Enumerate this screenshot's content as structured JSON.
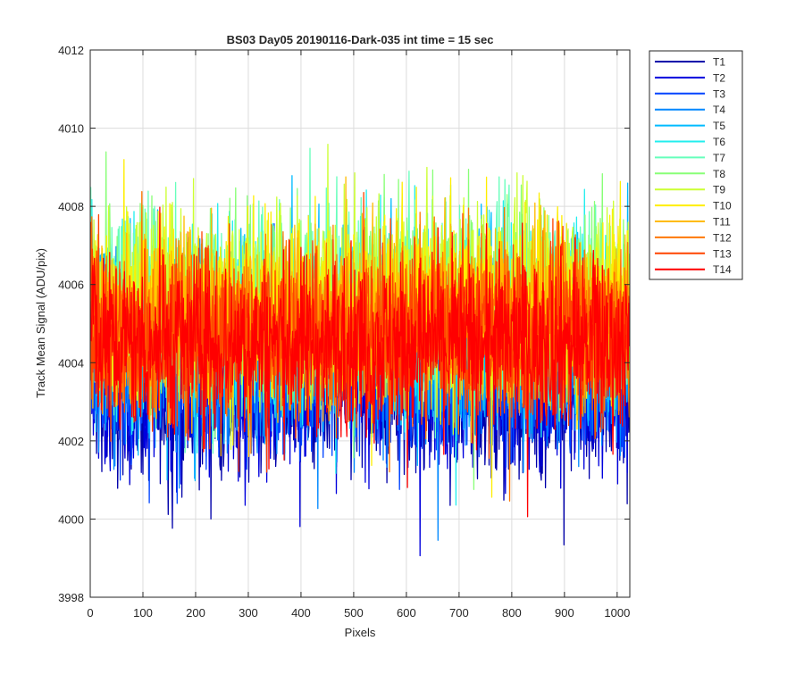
{
  "chart_data": {
    "type": "line",
    "title": "BS03 Day05 20190116-Dark-035 int time = 15 sec",
    "xlabel": "Pixels",
    "ylabel": "Track Mean Signal (ADU/pix)",
    "xlim": [
      0,
      1024
    ],
    "ylim": [
      3998,
      4012
    ],
    "xticks": [
      0,
      100,
      200,
      300,
      400,
      500,
      600,
      700,
      800,
      900,
      1000
    ],
    "yticks": [
      3998,
      4000,
      4002,
      4004,
      4006,
      4008,
      4010,
      4012
    ],
    "grid": true,
    "legend_position": "outside-top-right",
    "n_points": 1024,
    "series": [
      {
        "name": "T1",
        "color": "#0000aa",
        "mean": 4003.2,
        "spread": 1.1
      },
      {
        "name": "T2",
        "color": "#0000dd",
        "mean": 4003.5,
        "spread": 1.1
      },
      {
        "name": "T3",
        "color": "#0044ff",
        "mean": 4003.9,
        "spread": 1.1
      },
      {
        "name": "T4",
        "color": "#0088ff",
        "mean": 4004.3,
        "spread": 1.2
      },
      {
        "name": "T5",
        "color": "#00bbff",
        "mean": 4004.8,
        "spread": 1.2
      },
      {
        "name": "T6",
        "color": "#22eeee",
        "mean": 4005.2,
        "spread": 1.2
      },
      {
        "name": "T7",
        "color": "#66ffbb",
        "mean": 4005.5,
        "spread": 1.2
      },
      {
        "name": "T8",
        "color": "#88ff77",
        "mean": 4005.6,
        "spread": 1.2
      },
      {
        "name": "T9",
        "color": "#ccff33",
        "mean": 4005.6,
        "spread": 1.2
      },
      {
        "name": "T10",
        "color": "#ffee00",
        "mean": 4005.4,
        "spread": 1.2
      },
      {
        "name": "T11",
        "color": "#ffbb00",
        "mean": 4005.1,
        "spread": 1.1
      },
      {
        "name": "T12",
        "color": "#ff7700",
        "mean": 4004.9,
        "spread": 1.1
      },
      {
        "name": "T13",
        "color": "#ff4400",
        "mean": 4004.7,
        "spread": 1.1
      },
      {
        "name": "T14",
        "color": "#ff0000",
        "mean": 4004.5,
        "spread": 1.1
      }
    ]
  }
}
